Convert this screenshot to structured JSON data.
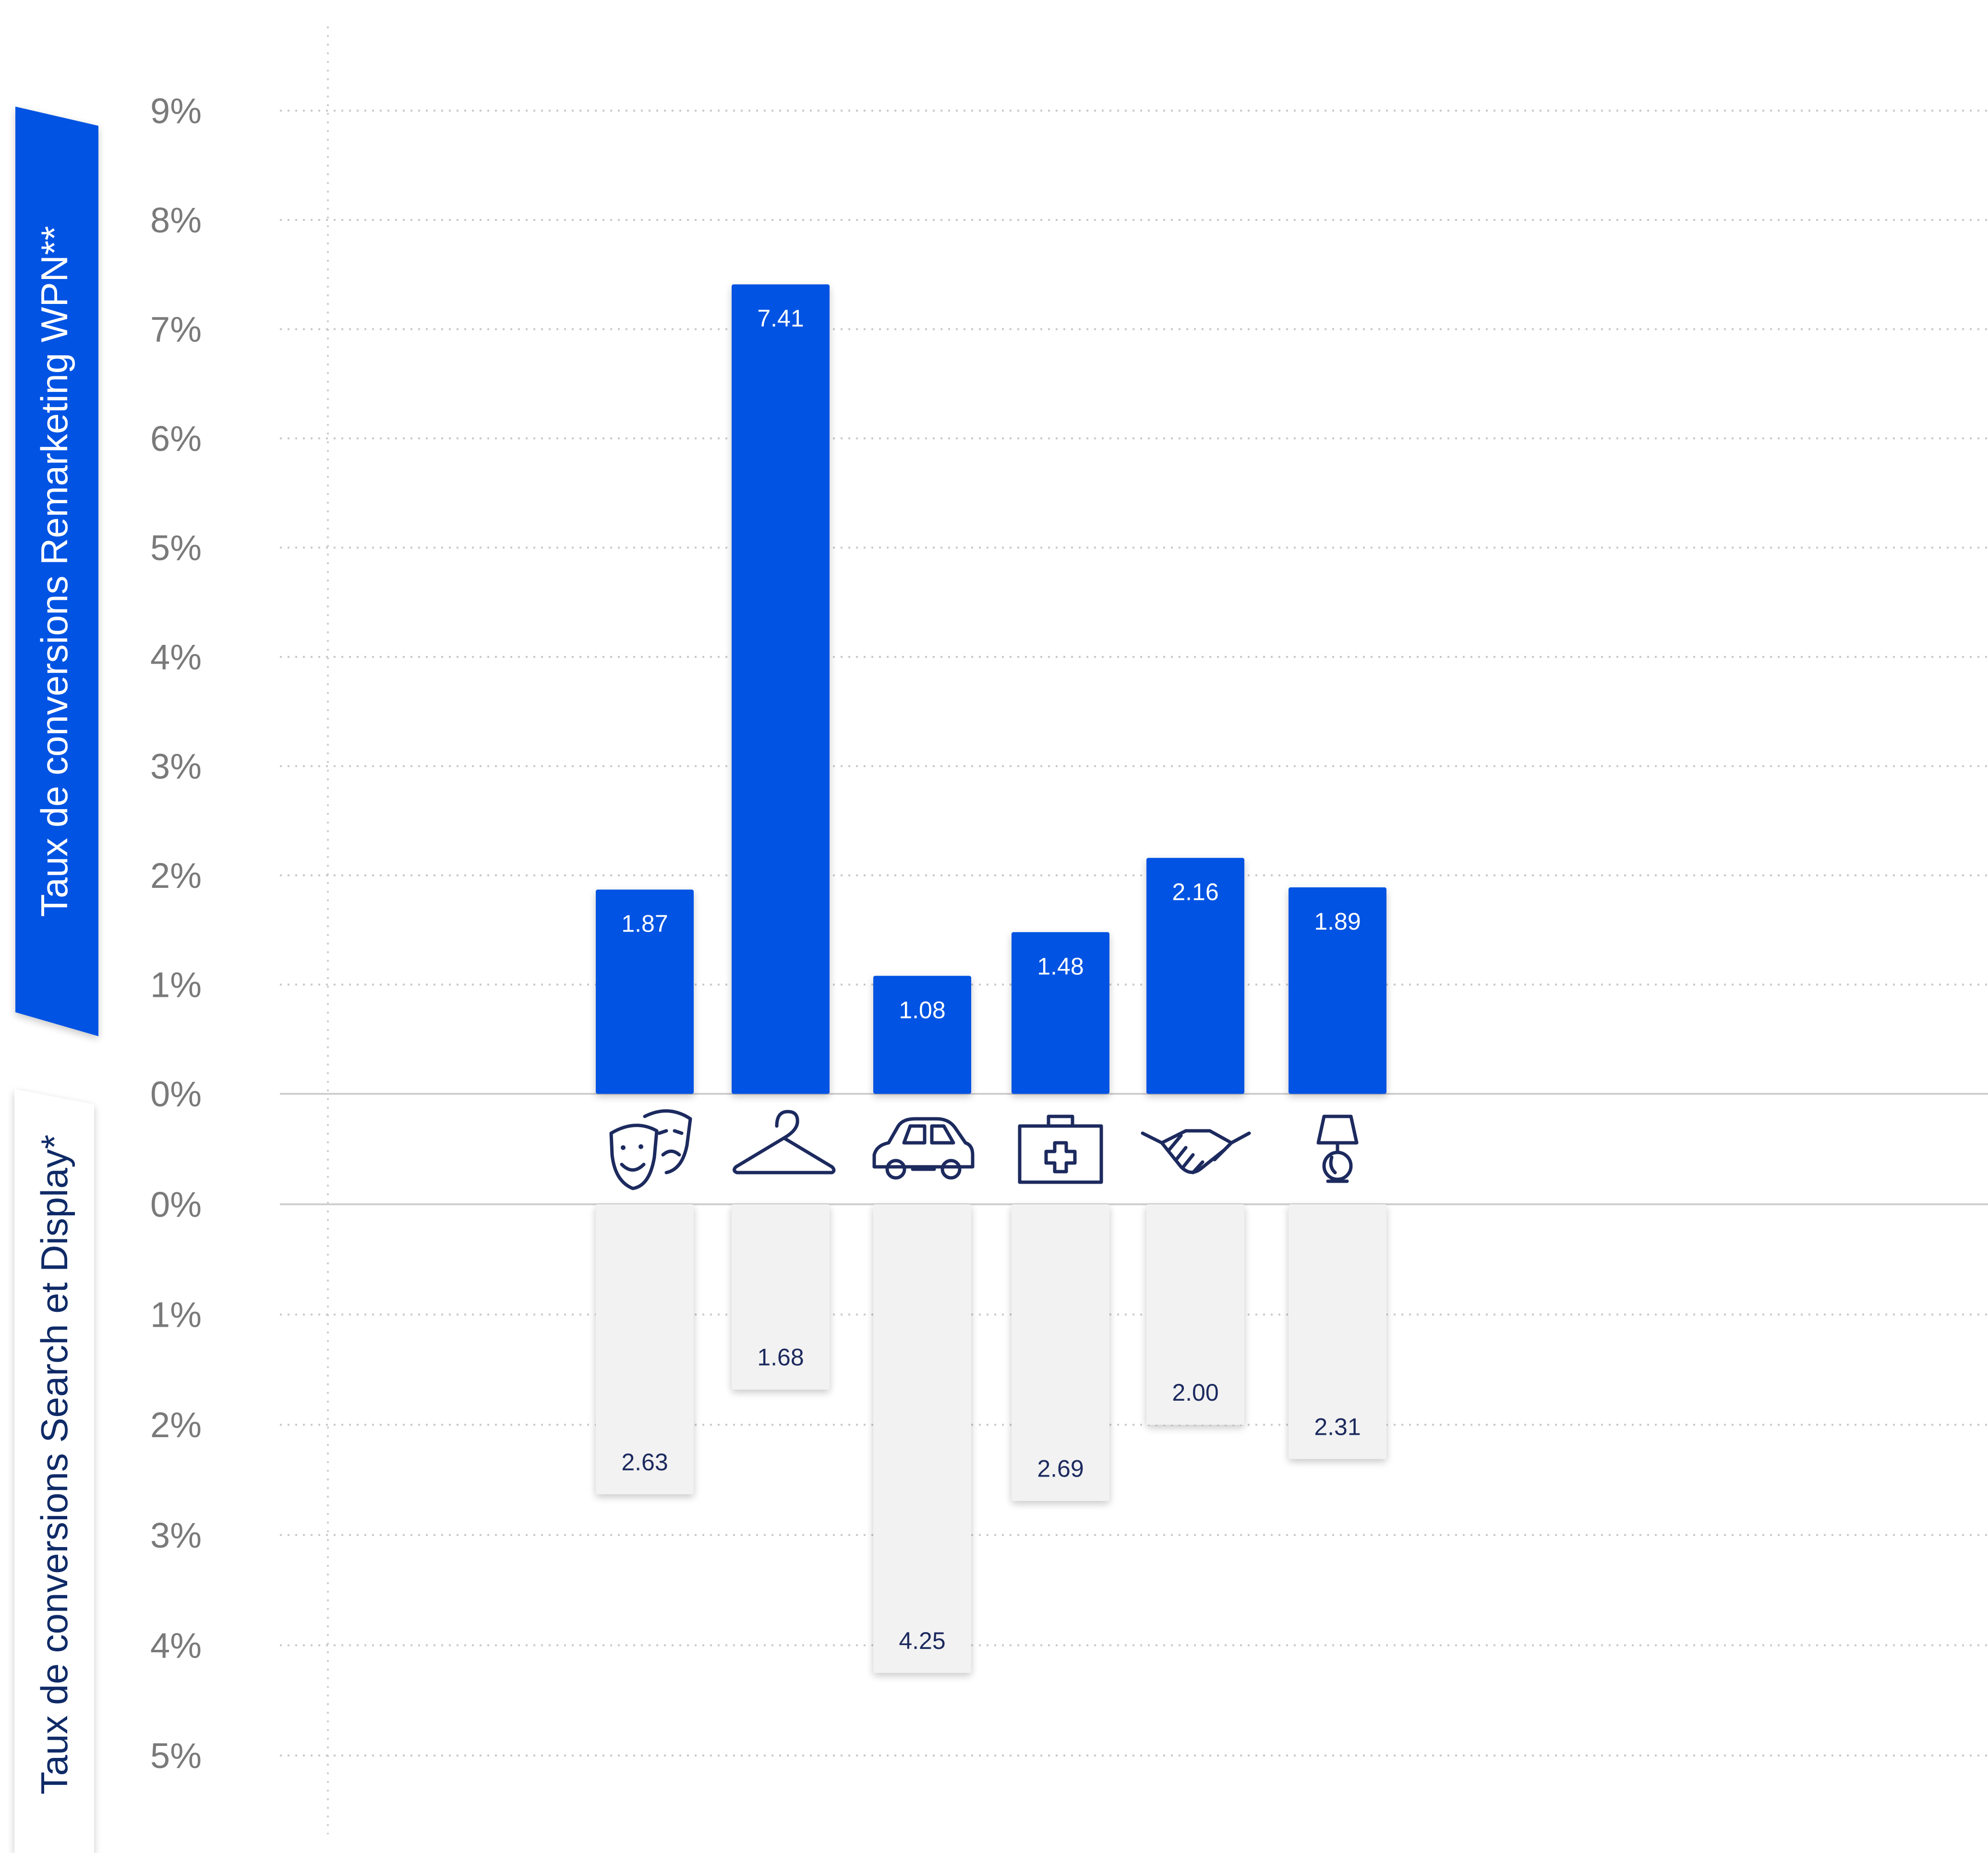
{
  "chart_data": {
    "type": "bar",
    "categories": [
      "theatre",
      "clothing",
      "automotive",
      "health",
      "business",
      "home"
    ],
    "category_icons": [
      "theatre-masks-icon",
      "hanger-icon",
      "car-icon",
      "first-aid-kit-icon",
      "handshake-icon",
      "lamp-icon"
    ],
    "series": [
      {
        "name": "Taux de conversions Remarketing WPN**",
        "values": [
          1.87,
          7.41,
          1.08,
          1.48,
          2.16,
          1.89
        ],
        "color": "#0652e3",
        "direction": "up"
      },
      {
        "name": "Taux de conversions Search et Display*",
        "values": [
          2.63,
          1.68,
          4.25,
          2.69,
          2.0,
          2.31
        ],
        "color": "#f2f2f2",
        "direction": "down"
      }
    ],
    "data_labels_top": [
      "1.87",
      "7.41",
      "1.08",
      "1.48",
      "2.16",
      "1.89"
    ],
    "data_labels_bottom": [
      "2.63",
      "1.68",
      "4.25",
      "2.69",
      "2.00",
      "2.31"
    ],
    "top_axis": {
      "label": "Taux de conversions Remarketing WPN**",
      "ticks": [
        "0%",
        "1%",
        "2%",
        "3%",
        "4%",
        "5%",
        "6%",
        "7%",
        "8%",
        "9%"
      ],
      "ylim": [
        0,
        9
      ]
    },
    "bottom_axis": {
      "label": "Taux de conversions Search et Display*",
      "ticks": [
        "0%",
        "1%",
        "2%",
        "3%",
        "4%",
        "5%"
      ],
      "ylim": [
        0,
        5
      ]
    },
    "grid": true,
    "colors": {
      "accent": "#0652e3",
      "label_dark": "#1c2a5e",
      "bottom_bar": "#f2f2f2",
      "grid": "#c9c9c9"
    }
  }
}
